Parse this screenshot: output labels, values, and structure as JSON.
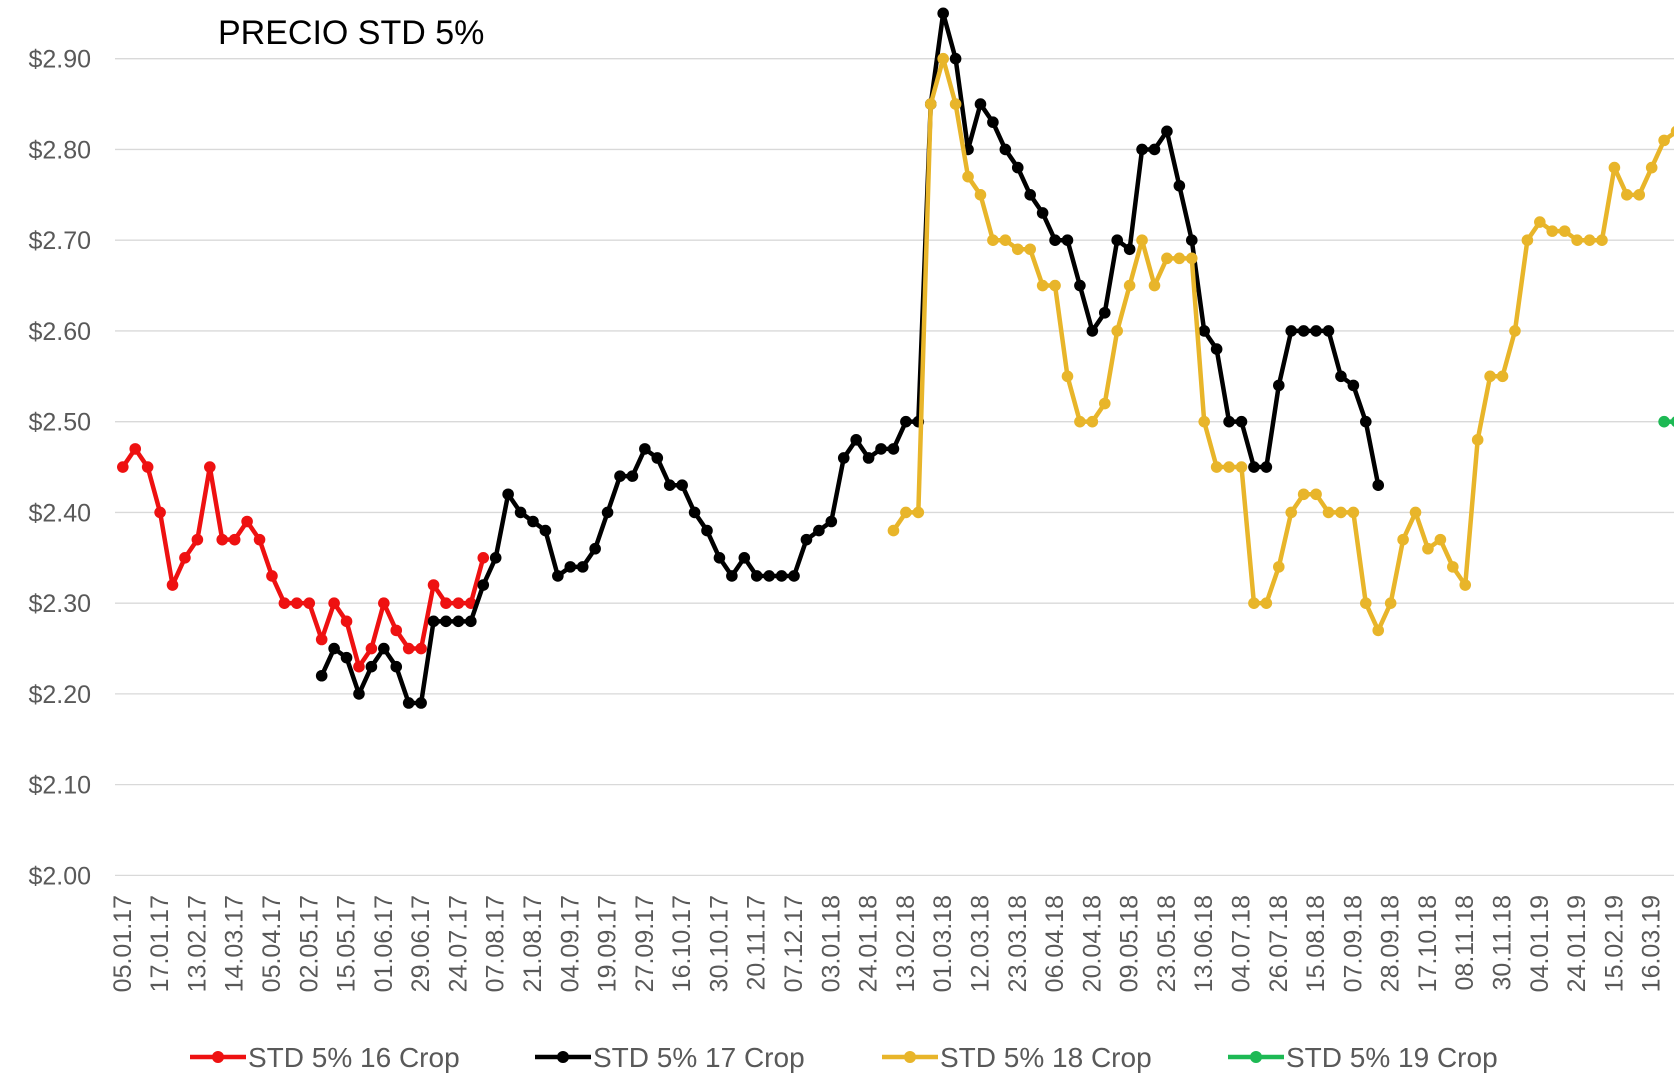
{
  "chart_data": {
    "type": "line",
    "title": "PRECIO STD 5%",
    "categories": [
      "05.01.17",
      null,
      null,
      "17.01.17",
      null,
      null,
      "13.02.17",
      null,
      null,
      "14.03.17",
      null,
      null,
      "05.04.17",
      null,
      null,
      "02.05.17",
      null,
      null,
      "15.05.17",
      null,
      null,
      "01.06.17",
      null,
      null,
      "29.06.17",
      null,
      null,
      "24.07.17",
      null,
      null,
      "07.08.17",
      null,
      null,
      "21.08.17",
      null,
      null,
      "04.09.17",
      null,
      null,
      "19.09.17",
      null,
      null,
      "27.09.17",
      null,
      null,
      "16.10.17",
      null,
      null,
      "30.10.17",
      null,
      null,
      "20.11.17",
      null,
      null,
      "07.12.17",
      null,
      null,
      "03.01.18",
      null,
      null,
      "24.01.18",
      null,
      null,
      "13.02.18",
      null,
      null,
      "01.03.18",
      null,
      null,
      "12.03.18",
      null,
      null,
      "23.03.18",
      null,
      null,
      "06.04.18",
      null,
      null,
      "20.04.18",
      null,
      null,
      "09.05.18",
      null,
      null,
      "23.05.18",
      null,
      null,
      "13.06.18",
      null,
      null,
      "04.07.18",
      null,
      null,
      "26.07.18",
      null,
      null,
      "15.08.18",
      null,
      null,
      "07.09.18",
      null,
      null,
      "28.09.18",
      null,
      null,
      "17.10.18",
      null,
      null,
      "08.11.18",
      null,
      null,
      "30.11.18",
      null,
      null,
      "04.01.19",
      null,
      null,
      "24.01.19",
      null,
      null,
      "15.02.19",
      null,
      null,
      "16.03.19",
      null,
      null
    ],
    "series": [
      {
        "name": "STD 5% 16 Crop",
        "color": "#ee1111",
        "values": [
          2.45,
          2.47,
          2.45,
          2.4,
          2.32,
          2.35,
          2.37,
          2.45,
          2.37,
          2.37,
          2.39,
          2.37,
          2.33,
          2.3,
          2.3,
          2.3,
          2.26,
          2.3,
          2.28,
          2.23,
          2.25,
          2.3,
          2.27,
          2.25,
          2.25,
          2.32,
          2.3,
          2.3,
          2.3,
          2.35,
          null,
          null,
          null,
          null,
          null,
          null,
          null,
          null,
          null,
          null,
          null,
          null,
          null,
          null,
          null,
          null,
          null,
          null,
          null,
          null,
          null,
          null,
          null,
          null,
          null,
          null,
          null,
          null,
          null,
          null,
          null,
          null,
          null,
          null,
          null,
          null,
          null,
          null,
          null,
          null,
          null,
          null,
          null,
          null,
          null,
          null,
          null,
          null,
          null,
          null,
          null,
          null,
          null,
          null,
          null,
          null,
          null,
          null,
          null,
          null,
          null,
          null,
          null,
          null,
          null,
          null,
          null,
          null,
          null,
          null,
          null,
          null,
          null,
          null,
          null,
          null,
          null,
          null,
          null,
          null,
          null,
          null,
          null,
          null,
          null,
          null,
          null,
          null,
          null,
          null,
          null,
          null,
          null,
          null,
          null,
          null
        ]
      },
      {
        "name": "STD 5% 17 Crop",
        "color": "#000000",
        "values": [
          null,
          null,
          null,
          null,
          null,
          null,
          null,
          null,
          null,
          null,
          null,
          null,
          null,
          null,
          null,
          null,
          2.22,
          2.25,
          2.24,
          2.2,
          2.23,
          2.25,
          2.23,
          2.19,
          2.19,
          2.28,
          2.28,
          2.28,
          2.28,
          2.32,
          2.35,
          2.42,
          2.4,
          2.39,
          2.38,
          2.33,
          2.34,
          2.34,
          2.36,
          2.4,
          2.44,
          2.44,
          2.47,
          2.46,
          2.43,
          2.43,
          2.4,
          2.38,
          2.35,
          2.33,
          2.35,
          2.33,
          2.33,
          2.33,
          2.33,
          2.37,
          2.38,
          2.39,
          2.46,
          2.48,
          2.46,
          2.47,
          2.47,
          2.5,
          2.5,
          2.85,
          2.95,
          2.9,
          2.8,
          2.85,
          2.83,
          2.8,
          2.78,
          2.75,
          2.73,
          2.7,
          2.7,
          2.65,
          2.6,
          2.62,
          2.7,
          2.69,
          2.8,
          2.8,
          2.82,
          2.76,
          2.7,
          2.6,
          2.58,
          2.5,
          2.5,
          2.45,
          2.45,
          2.54,
          2.6,
          2.6,
          2.6,
          2.6,
          2.55,
          2.54,
          2.5,
          2.43,
          null,
          null,
          null,
          null,
          null,
          null,
          null,
          null,
          null,
          null,
          null,
          null,
          null,
          null,
          null,
          null,
          null,
          null,
          null,
          null,
          null,
          null,
          null,
          null
        ]
      },
      {
        "name": "STD 5% 18 Crop",
        "color": "#e8b52a",
        "values": [
          null,
          null,
          null,
          null,
          null,
          null,
          null,
          null,
          null,
          null,
          null,
          null,
          null,
          null,
          null,
          null,
          null,
          null,
          null,
          null,
          null,
          null,
          null,
          null,
          null,
          null,
          null,
          null,
          null,
          null,
          null,
          null,
          null,
          null,
          null,
          null,
          null,
          null,
          null,
          null,
          null,
          null,
          null,
          null,
          null,
          null,
          null,
          null,
          null,
          null,
          null,
          null,
          null,
          null,
          null,
          null,
          null,
          null,
          null,
          null,
          null,
          null,
          2.38,
          2.4,
          2.4,
          2.85,
          2.9,
          2.85,
          2.77,
          2.75,
          2.7,
          2.7,
          2.69,
          2.69,
          2.65,
          2.65,
          2.55,
          2.5,
          2.5,
          2.52,
          2.6,
          2.65,
          2.7,
          2.65,
          2.68,
          2.68,
          2.68,
          2.5,
          2.45,
          2.45,
          2.45,
          2.3,
          2.3,
          2.34,
          2.4,
          2.42,
          2.42,
          2.4,
          2.4,
          2.4,
          2.3,
          2.27,
          2.3,
          2.37,
          2.4,
          2.36,
          2.37,
          2.34,
          2.32,
          2.48,
          2.55,
          2.55,
          2.6,
          2.7,
          2.72,
          2.71,
          2.71,
          2.7,
          2.7,
          2.7,
          2.78,
          2.75,
          2.75,
          2.78,
          2.81,
          2.82
        ]
      },
      {
        "name": "STD 5% 19 Crop",
        "color": "#1db954",
        "values": [
          null,
          null,
          null,
          null,
          null,
          null,
          null,
          null,
          null,
          null,
          null,
          null,
          null,
          null,
          null,
          null,
          null,
          null,
          null,
          null,
          null,
          null,
          null,
          null,
          null,
          null,
          null,
          null,
          null,
          null,
          null,
          null,
          null,
          null,
          null,
          null,
          null,
          null,
          null,
          null,
          null,
          null,
          null,
          null,
          null,
          null,
          null,
          null,
          null,
          null,
          null,
          null,
          null,
          null,
          null,
          null,
          null,
          null,
          null,
          null,
          null,
          null,
          null,
          null,
          null,
          null,
          null,
          null,
          null,
          null,
          null,
          null,
          null,
          null,
          null,
          null,
          null,
          null,
          null,
          null,
          null,
          null,
          null,
          null,
          null,
          null,
          null,
          null,
          null,
          null,
          null,
          null,
          null,
          null,
          null,
          null,
          null,
          null,
          null,
          null,
          null,
          null,
          null,
          null,
          null,
          null,
          null,
          null,
          null,
          null,
          null,
          null,
          null,
          null,
          null,
          null,
          null,
          null,
          null,
          null,
          null,
          null,
          null,
          null,
          2.5,
          2.5
        ]
      }
    ],
    "ylim": [
      2.0,
      2.9
    ],
    "yticks": [
      {
        "value": 2.0,
        "label": "$2.00"
      },
      {
        "value": 2.1,
        "label": "$2.10"
      },
      {
        "value": 2.2,
        "label": "$2.20"
      },
      {
        "value": 2.3,
        "label": "$2.30"
      },
      {
        "value": 2.4,
        "label": "$2.40"
      },
      {
        "value": 2.5,
        "label": "$2.50"
      },
      {
        "value": 2.6,
        "label": "$2.60"
      },
      {
        "value": 2.7,
        "label": "$2.70"
      },
      {
        "value": 2.8,
        "label": "$2.80"
      },
      {
        "value": 2.9,
        "label": "$2.90"
      }
    ],
    "grid": true,
    "legend": "bottom"
  }
}
